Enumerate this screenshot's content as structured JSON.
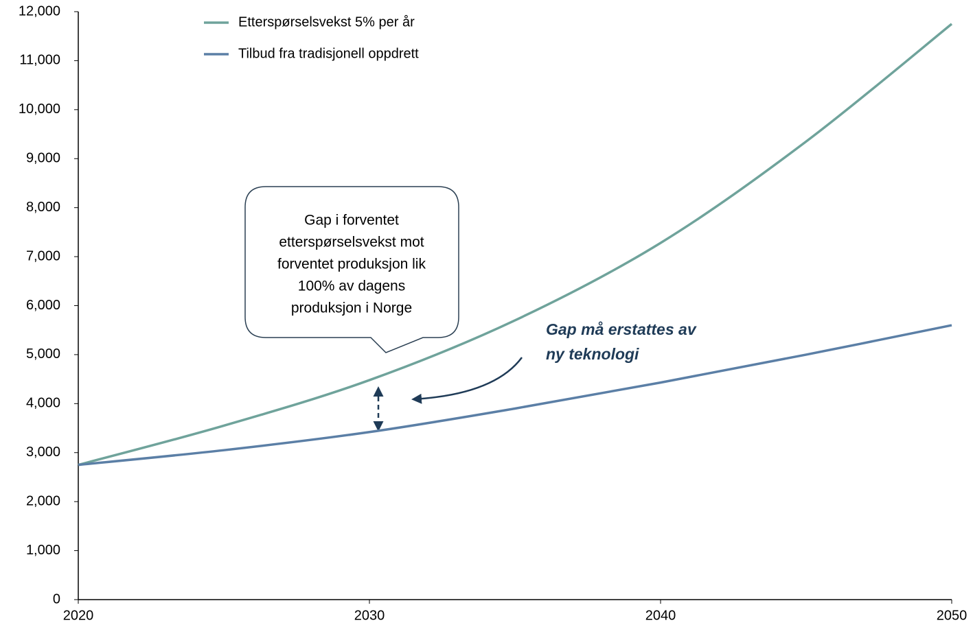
{
  "chart_data": {
    "type": "line",
    "x": [
      2020,
      2025,
      2030,
      2035,
      2040,
      2045,
      2050
    ],
    "series": [
      {
        "name": "Etterspørselsvekst 5% per år",
        "color": "#6fa39b",
        "values": [
          2750,
          3550,
          4480,
          5700,
          7280,
          9350,
          11750
        ]
      },
      {
        "name": "Tilbud fra tradisjonell oppdrett",
        "color": "#5b7fa6",
        "values": [
          2750,
          3050,
          3420,
          3900,
          4430,
          5000,
          5600
        ]
      }
    ],
    "xlim": [
      2020,
      2050
    ],
    "xticks": [
      2020,
      2030,
      2040,
      2050
    ],
    "ylim": [
      0,
      12000
    ],
    "yticks": [
      0,
      {
        "value": 1000,
        "label": "1,000"
      },
      {
        "value": 2000,
        "label": "2,000"
      },
      {
        "value": 3000,
        "label": "3,000"
      },
      {
        "value": 4000,
        "label": "4,000"
      },
      {
        "value": 5000,
        "label": "5,000"
      },
      {
        "value": 6000,
        "label": "6,000"
      },
      {
        "value": 7000,
        "label": "7,000"
      },
      {
        "value": 8000,
        "label": "8,000"
      },
      {
        "value": 9000,
        "label": "9,000"
      },
      {
        "value": 10000,
        "label": "10,000"
      },
      {
        "value": 11000,
        "label": "11,000"
      },
      {
        "value": 12000,
        "label": "12,000"
      }
    ],
    "grid": false,
    "legend": "top-left",
    "annotations": [
      {
        "lines": [
          "Gap i forventet",
          "etterspørselsvekst mot",
          "forventet produksjon lik",
          "100% av dagens",
          "produksjon i Norge"
        ]
      },
      {
        "lines": [
          "Gap må erstattes av",
          "ny teknologi"
        ]
      }
    ]
  }
}
